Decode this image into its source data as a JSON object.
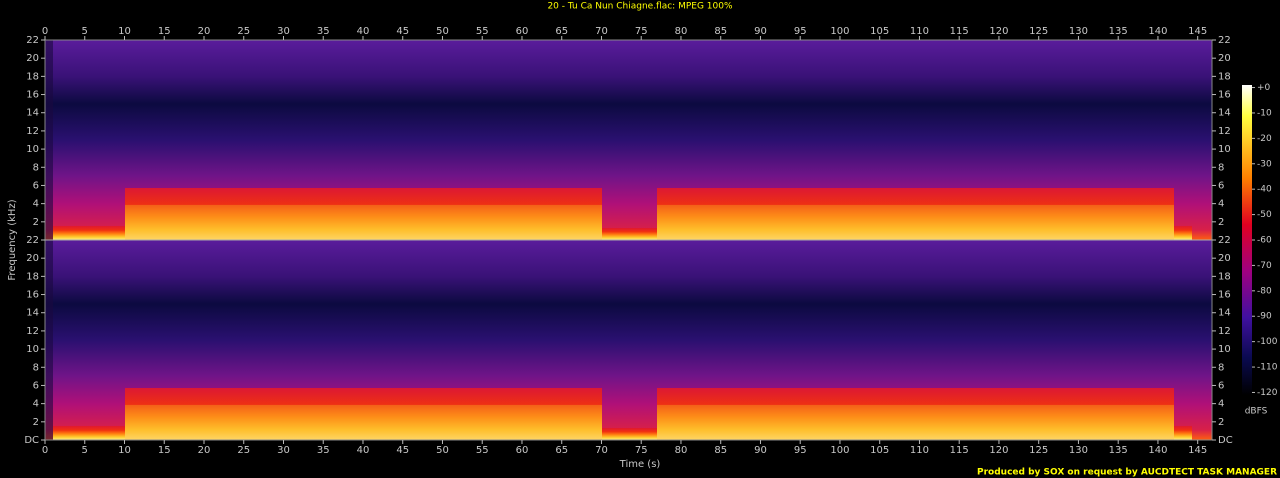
{
  "chart_data": {
    "type": "heatmap",
    "title": "20 - Tu Ca Nun Chiagne.flac: MPEG 100%",
    "x_label": "Time (s)",
    "y_label": "Frequency (kHz)",
    "xlim": [
      0,
      146.8
    ],
    "xticks": [
      0,
      5,
      10,
      15,
      20,
      25,
      30,
      35,
      40,
      45,
      50,
      55,
      60,
      65,
      70,
      75,
      80,
      85,
      90,
      95,
      100,
      105,
      110,
      115,
      120,
      125,
      130,
      135,
      140,
      145
    ],
    "panels": [
      {
        "ylim": [
          0,
          22
        ],
        "yticks": [
          2,
          4,
          6,
          8,
          10,
          12,
          14,
          16,
          18,
          20,
          22
        ]
      },
      {
        "ylim": [
          0,
          22
        ],
        "yticks": [
          {
            "value": 0,
            "label": "DC"
          },
          2,
          4,
          6,
          8,
          10,
          12,
          14,
          16,
          18,
          20,
          22
        ]
      }
    ],
    "colorbar": {
      "label": "dBFS",
      "lim": [
        -121,
        1
      ],
      "ticks": [
        {
          "value": 0,
          "label": "+0"
        },
        -10,
        -20,
        -30,
        -40,
        -50,
        -60,
        -70,
        -80,
        -90,
        -100,
        -110,
        -120
      ]
    },
    "footer": "Produced by SOX on request by AUCDTECT TASK MANAGER"
  }
}
